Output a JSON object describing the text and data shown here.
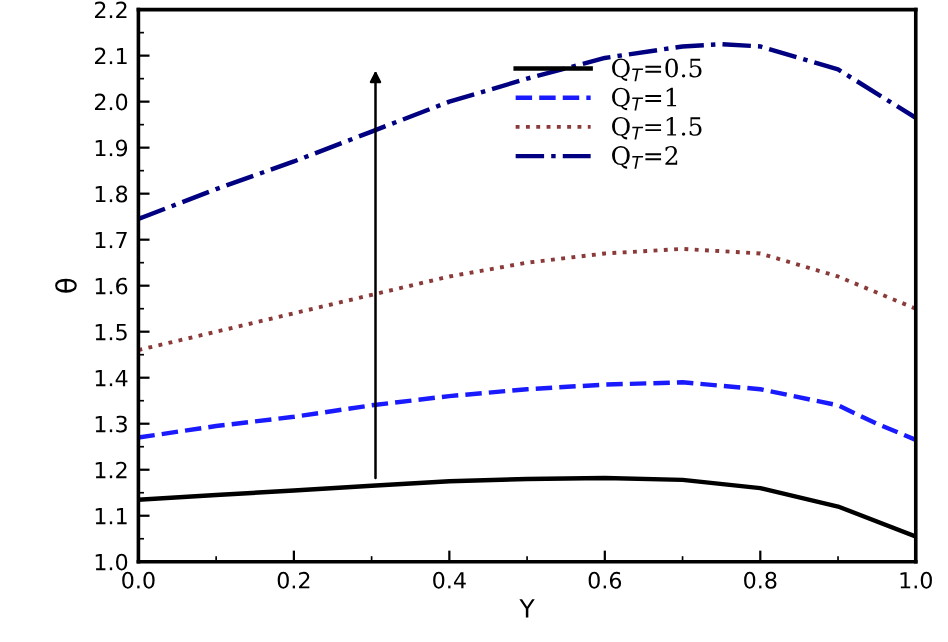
{
  "chart_data": {
    "type": "line",
    "xlabel": "Y",
    "ylabel": "θ",
    "xlim": [
      0,
      1
    ],
    "ylim": [
      1.0,
      2.2
    ],
    "xticks": [
      {
        "value": 0,
        "label": "0.0"
      },
      0.2,
      0.4,
      0.6,
      0.8,
      {
        "value": 1,
        "label": "1.0"
      }
    ],
    "yticks": [
      {
        "value": 1,
        "label": "1.0"
      },
      1.1,
      1.2,
      1.3,
      1.4,
      1.5,
      1.6,
      1.7,
      1.8,
      1.9,
      {
        "value": 2,
        "label": "2.0"
      },
      2.1,
      2.2
    ],
    "grid": false,
    "legend": "top right",
    "marker": "none",
    "series": [
      {
        "name": "Q$_{T}$=0.5",
        "color": "#000000",
        "line_style": "solid",
        "x": [
          0,
          0.1,
          0.2,
          0.3,
          0.4,
          0.5,
          0.6,
          0.7,
          0.8,
          0.9,
          1.0
        ],
        "values": [
          1.135,
          1.145,
          1.155,
          1.165,
          1.175,
          1.18,
          1.182,
          1.178,
          1.16,
          1.12,
          1.055
        ]
      },
      {
        "name": "Q$_{T}$=1",
        "color": "#1a1aff",
        "line_style": "dashed",
        "x": [
          0,
          0.1,
          0.2,
          0.3,
          0.4,
          0.5,
          0.6,
          0.7,
          0.8,
          0.9,
          0.95,
          1.0
        ],
        "values": [
          1.27,
          1.295,
          1.315,
          1.34,
          1.36,
          1.375,
          1.385,
          1.39,
          1.375,
          1.34,
          1.3,
          1.265
        ]
      },
      {
        "name": "Q$_{T}$=1.5",
        "color": "#8b3a3a",
        "line_style": "dotted",
        "x": [
          0,
          0.1,
          0.2,
          0.3,
          0.4,
          0.5,
          0.6,
          0.7,
          0.8,
          0.9,
          1.0
        ],
        "values": [
          1.46,
          1.5,
          1.54,
          1.58,
          1.62,
          1.65,
          1.67,
          1.68,
          1.67,
          1.62,
          1.55
        ]
      },
      {
        "name": "Q$_{T}$=2",
        "color": "#000080",
        "line_style": "dashdot",
        "x": [
          0,
          0.1,
          0.2,
          0.3,
          0.4,
          0.5,
          0.6,
          0.7,
          0.75,
          0.8,
          0.9,
          1.0
        ],
        "values": [
          1.745,
          1.81,
          1.87,
          1.935,
          2.0,
          2.05,
          2.095,
          2.12,
          2.125,
          2.12,
          2.07,
          1.965
        ]
      }
    ]
  }
}
